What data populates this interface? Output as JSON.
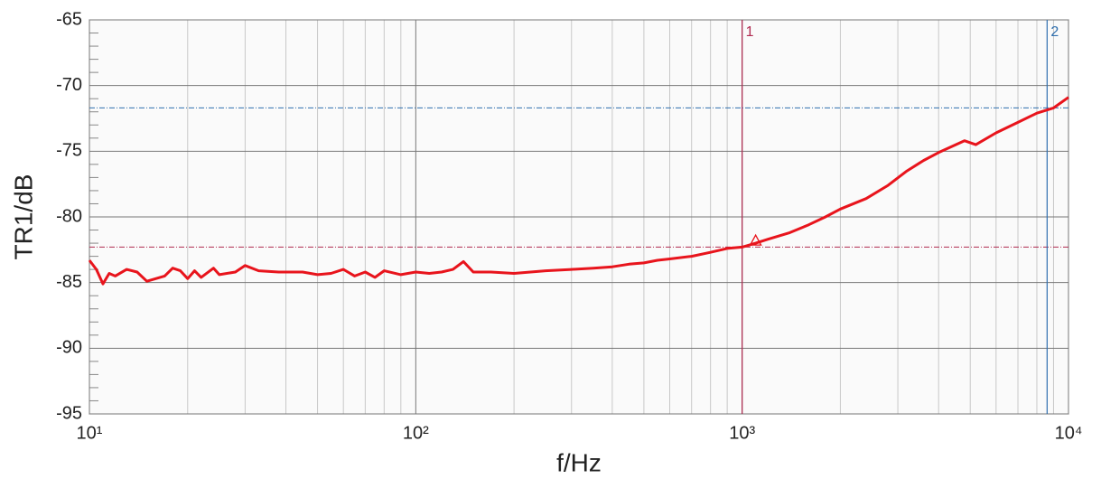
{
  "chart_data": {
    "type": "line",
    "x_label": "f/Hz",
    "y_label": "TR1/dB",
    "xscale": "log",
    "xlim": [
      10,
      10000
    ],
    "xticks": [
      {
        "value": 10,
        "label": "10¹"
      },
      {
        "value": 100,
        "label": "10²"
      },
      {
        "value": 1000,
        "label": "10³"
      },
      {
        "value": 10000,
        "label": "10⁴"
      }
    ],
    "xticks_minor": [
      20,
      30,
      40,
      50,
      60,
      70,
      80,
      90,
      200,
      300,
      400,
      500,
      600,
      700,
      800,
      900,
      2000,
      3000,
      4000,
      5000,
      6000,
      7000,
      8000,
      9000
    ],
    "ylim": [
      -95,
      -65
    ],
    "yticks": [
      -95,
      -90,
      -85,
      -80,
      -75,
      -70,
      -65
    ],
    "yticks_minor": [
      -94,
      -93,
      -92,
      -91,
      -89,
      -88,
      -87,
      -86,
      -84,
      -83,
      -82,
      -81,
      -79,
      -78,
      -77,
      -76,
      -74,
      -73,
      -72,
      -71,
      -69,
      -68,
      -67,
      -66
    ],
    "grid": true,
    "series": [
      {
        "color": "#e8141c",
        "x": [
          10,
          10.5,
          11,
          11.5,
          12,
          13,
          14,
          15,
          17,
          18,
          19,
          20,
          21,
          22,
          24,
          25,
          28,
          30,
          33,
          38,
          45,
          50,
          55,
          60,
          65,
          70,
          75,
          80,
          90,
          100,
          110,
          120,
          130,
          140,
          150,
          170,
          200,
          250,
          300,
          350,
          400,
          450,
          500,
          550,
          600,
          700,
          800,
          900,
          1000,
          1100,
          1200,
          1400,
          1600,
          1800,
          2000,
          2400,
          2800,
          3200,
          3600,
          4000,
          4800,
          5200,
          6000,
          7000,
          8000,
          9000,
          10000
        ],
        "values": [
          -83.3,
          -84,
          -85.1,
          -84.3,
          -84.5,
          -84,
          -84.2,
          -84.9,
          -84.5,
          -83.9,
          -84.1,
          -84.7,
          -84.1,
          -84.6,
          -83.9,
          -84.4,
          -84.2,
          -83.7,
          -84.1,
          -84.2,
          -84.2,
          -84.4,
          -84.3,
          -84.0,
          -84.5,
          -84.2,
          -84.6,
          -84.1,
          -84.4,
          -84.2,
          -84.3,
          -84.2,
          -84.0,
          -83.4,
          -84.2,
          -84.2,
          -84.3,
          -84.1,
          -84.0,
          -83.9,
          -83.8,
          -83.6,
          -83.5,
          -83.3,
          -83.2,
          -83.0,
          -82.7,
          -82.4,
          -82.3,
          -82.0,
          -81.7,
          -81.2,
          -80.6,
          -80.0,
          -79.4,
          -78.6,
          -77.6,
          -76.5,
          -75.7,
          -75.1,
          -74.2,
          -74.5,
          -73.6,
          -72.8,
          -72.1,
          -71.7,
          -70.9
        ]
      }
    ],
    "markers": [
      {
        "label": "1",
        "x": 1000,
        "y": -82.3,
        "color": "#b02a50"
      },
      {
        "label": "2",
        "x": 8600,
        "y": -71.7,
        "color": "#2f6fae"
      }
    ],
    "delta_marker": {
      "x": 1100,
      "y": -81.8,
      "color": "#e8141c"
    }
  }
}
